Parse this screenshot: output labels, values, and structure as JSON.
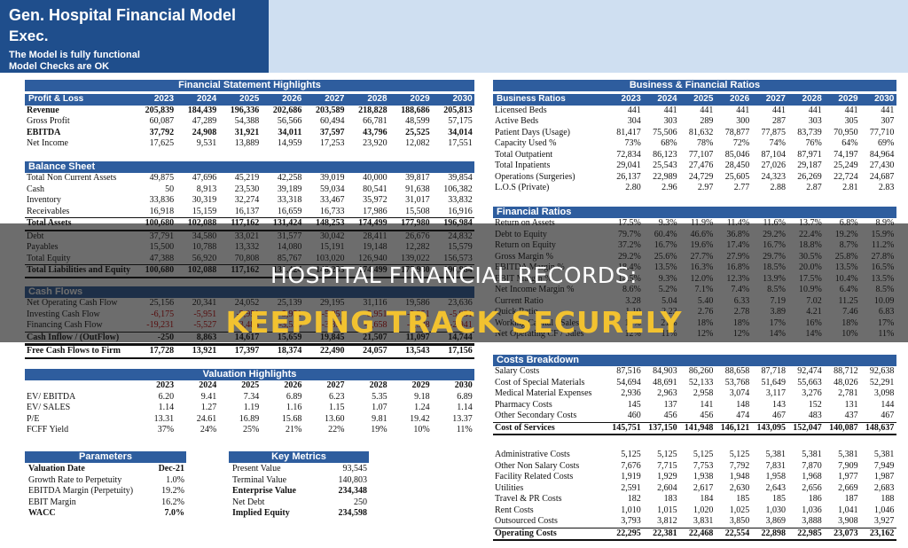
{
  "header": {
    "title": "Gen. Hospital Financial Model",
    "subtitle": "Exec.",
    "status1": "The Model is fully functional",
    "status2": "Model Checks are OK"
  },
  "years": [
    "2023",
    "2024",
    "2025",
    "2026",
    "2027",
    "2028",
    "2029",
    "2030"
  ],
  "fsh": {
    "title": "Financial Statement Highlights"
  },
  "pl": {
    "title": "Profit & Loss",
    "rows": [
      {
        "label": "Revenue",
        "values": [
          "205,839",
          "184,439",
          "196,336",
          "202,686",
          "203,589",
          "218,828",
          "188,686",
          "205,813"
        ],
        "bold": true
      },
      {
        "label": "Gross Profit",
        "values": [
          "60,087",
          "47,289",
          "54,388",
          "56,566",
          "60,494",
          "66,781",
          "48,599",
          "57,175"
        ]
      },
      {
        "label": "EBITDA",
        "values": [
          "37,792",
          "24,908",
          "31,921",
          "34,011",
          "37,597",
          "43,796",
          "25,525",
          "34,014"
        ],
        "bold": true
      },
      {
        "label": "Net Income",
        "values": [
          "17,625",
          "9,531",
          "13,889",
          "14,959",
          "17,253",
          "23,920",
          "12,082",
          "17,551"
        ]
      }
    ]
  },
  "bs": {
    "title": "Balance Sheet",
    "rows": [
      {
        "label": "Total Non Current Assets",
        "values": [
          "49,875",
          "47,696",
          "45,219",
          "42,258",
          "39,019",
          "40,000",
          "39,817",
          "39,854"
        ]
      },
      {
        "label": "Cash",
        "values": [
          "50",
          "8,913",
          "23,530",
          "39,189",
          "59,034",
          "80,541",
          "91,638",
          "106,382"
        ]
      },
      {
        "label": "Inventory",
        "values": [
          "33,836",
          "30,319",
          "32,274",
          "33,318",
          "33,467",
          "35,972",
          "31,017",
          "33,832"
        ]
      },
      {
        "label": "Receivables",
        "values": [
          "16,918",
          "15,159",
          "16,137",
          "16,659",
          "16,733",
          "17,986",
          "15,508",
          "16,916"
        ]
      },
      {
        "label": "Total Assets",
        "values": [
          "100,680",
          "102,088",
          "117,162",
          "131,424",
          "148,253",
          "174,499",
          "177,980",
          "196,984"
        ],
        "total": true
      },
      {
        "label": "Debt",
        "values": [
          "37,791",
          "34,580",
          "33,021",
          "31,577",
          "30,042",
          "28,411",
          "26,676",
          "24,832"
        ]
      },
      {
        "label": "Payables",
        "values": [
          "15,500",
          "10,788",
          "13,332",
          "14,080",
          "15,191",
          "19,148",
          "12,282",
          "15,579"
        ]
      },
      {
        "label": "Total Equity",
        "values": [
          "47,388",
          "56,920",
          "70,808",
          "85,767",
          "103,020",
          "126,940",
          "139,022",
          "156,573"
        ]
      },
      {
        "label": "Total Liabilities and Equity",
        "values": [
          "100,680",
          "102,088",
          "117,162",
          "131,424",
          "148,253",
          "174,499",
          "177,980",
          "196,984"
        ],
        "total": true
      }
    ]
  },
  "cf": {
    "title": "Cash Flows",
    "rows": [
      {
        "label": "Net Operating Cash Flow",
        "values": [
          "25,156",
          "20,341",
          "24,052",
          "25,139",
          "29,195",
          "31,116",
          "19,586",
          "23,636"
        ]
      },
      {
        "label": "Investing Cash Flow",
        "values": [
          "-6,175",
          "-5,951",
          "-5,951",
          "-5,951",
          "-5,951",
          "-5,951",
          "-5,951",
          "-5,951"
        ],
        "neg": true
      },
      {
        "label": "Financing Cash Flow",
        "values": [
          "-19,231",
          "-5,527",
          "-3,484",
          "-3,529",
          "-3,399",
          "-3,658",
          "-2,538",
          "-2,941"
        ],
        "neg": true
      },
      {
        "label": "Cash Inflow / (OutFlow)",
        "values": [
          "-250",
          "8,863",
          "14,617",
          "15,659",
          "19,845",
          "21,507",
          "11,097",
          "14,744"
        ],
        "total": true
      },
      {
        "label": "Free Cash Flows to Firm",
        "values": [
          "17,728",
          "13,921",
          "17,397",
          "18,374",
          "22,490",
          "24,057",
          "13,543",
          "17,156"
        ],
        "total": true
      }
    ]
  },
  "vh": {
    "title": "Valuation Highlights",
    "rows": [
      {
        "label": "EV/ EBITDA",
        "values": [
          "6.20",
          "9.41",
          "7.34",
          "6.89",
          "6.23",
          "5.35",
          "9.18",
          "6.89"
        ]
      },
      {
        "label": "EV/ SALES",
        "values": [
          "1.14",
          "1.27",
          "1.19",
          "1.16",
          "1.15",
          "1.07",
          "1.24",
          "1.14"
        ]
      },
      {
        "label": "P/E",
        "values": [
          "13.31",
          "24.61",
          "16.89",
          "15.68",
          "13.60",
          "9.81",
          "19.42",
          "13.37"
        ]
      },
      {
        "label": "FCFF Yield",
        "values": [
          "37%",
          "24%",
          "25%",
          "21%",
          "22%",
          "19%",
          "10%",
          "11%"
        ]
      }
    ]
  },
  "params": {
    "title": "Parameters",
    "rows": [
      {
        "label": "Valuation Date",
        "value": "Dec-21",
        "bold": true
      },
      {
        "label": "Growth Rate to Perpetuity",
        "value": "1.0%"
      },
      {
        "label": "EBITDA Margin (Perpetuity)",
        "value": "19.2%"
      },
      {
        "label": "EBIT Margin",
        "value": "16.2%"
      },
      {
        "label": "WACC",
        "value": "7.0%",
        "bold": true
      }
    ]
  },
  "km": {
    "title": "Key Metrics",
    "rows": [
      {
        "label": "Present Value",
        "value": "93,545"
      },
      {
        "label": "Terminal Value",
        "value": "140,803"
      },
      {
        "label": "Enterprise Value",
        "value": "234,348",
        "bold": true
      },
      {
        "label": "Net Debt",
        "value": "250"
      },
      {
        "label": "Implied Equity",
        "value": "234,598",
        "bold": true
      }
    ]
  },
  "bfr": {
    "title": "Business & Financial Ratios"
  },
  "br": {
    "title": "Business Ratios",
    "rows": [
      {
        "label": "Licensed Beds",
        "values": [
          "441",
          "441",
          "441",
          "441",
          "441",
          "441",
          "441",
          "441"
        ]
      },
      {
        "label": "Active Beds",
        "values": [
          "304",
          "303",
          "289",
          "300",
          "287",
          "303",
          "305",
          "307"
        ]
      },
      {
        "label": "Patient Days (Usage)",
        "values": [
          "81,417",
          "75,506",
          "81,632",
          "78,877",
          "77,875",
          "83,739",
          "70,950",
          "77,710"
        ]
      },
      {
        "label": "Capacity Used %",
        "values": [
          "73%",
          "68%",
          "78%",
          "72%",
          "74%",
          "76%",
          "64%",
          "69%"
        ]
      },
      {
        "label": "Total Outpatient",
        "values": [
          "72,834",
          "86,123",
          "77,107",
          "85,046",
          "87,104",
          "87,971",
          "74,197",
          "84,964"
        ]
      },
      {
        "label": "Total Inpatients",
        "values": [
          "29,041",
          "25,543",
          "27,476",
          "28,450",
          "27,026",
          "29,187",
          "25,249",
          "27,430"
        ]
      },
      {
        "label": "Operations (Surgeries)",
        "values": [
          "26,137",
          "22,989",
          "24,729",
          "25,605",
          "24,323",
          "26,269",
          "22,724",
          "24,687"
        ]
      },
      {
        "label": "L.O.S (Private)",
        "values": [
          "2.80",
          "2.96",
          "2.97",
          "2.77",
          "2.88",
          "2.87",
          "2.81",
          "2.83"
        ]
      }
    ]
  },
  "fr": {
    "title": "Financial Ratios",
    "rows": [
      {
        "label": "Return on Assets",
        "values": [
          "17.5%",
          "9.3%",
          "11.9%",
          "11.4%",
          "11.6%",
          "13.7%",
          "6.8%",
          "8.9%"
        ]
      },
      {
        "label": "Debt to Equity",
        "values": [
          "79.7%",
          "60.4%",
          "46.6%",
          "36.8%",
          "29.2%",
          "22.4%",
          "19.2%",
          "15.9%"
        ]
      },
      {
        "label": "Return on Equity",
        "values": [
          "37.2%",
          "16.7%",
          "19.6%",
          "17.4%",
          "16.7%",
          "18.8%",
          "8.7%",
          "11.2%"
        ]
      },
      {
        "label": "Gross Margin %",
        "values": [
          "29.2%",
          "25.6%",
          "27.7%",
          "27.9%",
          "29.7%",
          "30.5%",
          "25.8%",
          "27.8%"
        ]
      },
      {
        "label": "EBITDA Margin %",
        "values": [
          "18.4%",
          "13.5%",
          "16.3%",
          "16.8%",
          "18.5%",
          "20.0%",
          "13.5%",
          "16.5%"
        ]
      },
      {
        "label": "EBIT Margin %",
        "values": [
          "14.5%",
          "9.3%",
          "12.0%",
          "12.3%",
          "13.9%",
          "17.5%",
          "10.4%",
          "13.5%"
        ]
      },
      {
        "label": "Net Income Margin %",
        "values": [
          "8.6%",
          "5.2%",
          "7.1%",
          "7.4%",
          "8.5%",
          "10.9%",
          "6.4%",
          "8.5%"
        ]
      },
      {
        "label": "Current Ratio",
        "values": [
          "3.28",
          "5.04",
          "5.40",
          "6.33",
          "7.19",
          "7.02",
          "11.25",
          "10.09"
        ]
      },
      {
        "label": "Quick Ratio",
        "values": [
          "1.10",
          "2.23",
          "2.76",
          "2.78",
          "3.89",
          "4.21",
          "7.46",
          "6.83"
        ]
      },
      {
        "label": "Working Capital / Sales",
        "values": [
          "17%",
          "21%",
          "18%",
          "18%",
          "17%",
          "16%",
          "18%",
          "17%"
        ]
      },
      {
        "label": "Net Operating CF / Sales",
        "values": [
          "12%",
          "11%",
          "12%",
          "12%",
          "14%",
          "14%",
          "10%",
          "11%"
        ]
      }
    ]
  },
  "cb": {
    "title": "Costs Breakdown",
    "rows": [
      {
        "label": "Salary Costs",
        "values": [
          "87,516",
          "84,903",
          "86,260",
          "88,658",
          "87,718",
          "92,474",
          "88,712",
          "92,638"
        ]
      },
      {
        "label": "Cost of Special Materials",
        "values": [
          "54,694",
          "48,691",
          "52,133",
          "53,768",
          "51,649",
          "55,663",
          "48,026",
          "52,291"
        ]
      },
      {
        "label": "Medical Material Expenses",
        "values": [
          "2,936",
          "2,963",
          "2,958",
          "3,074",
          "3,117",
          "3,276",
          "2,781",
          "3,098"
        ]
      },
      {
        "label": "Pharmacy Costs",
        "values": [
          "145",
          "137",
          "141",
          "148",
          "143",
          "152",
          "131",
          "144"
        ]
      },
      {
        "label": "Other Secondary Costs",
        "values": [
          "460",
          "456",
          "456",
          "474",
          "467",
          "483",
          "437",
          "467"
        ]
      },
      {
        "label": "Cost of Services",
        "values": [
          "145,751",
          "137,150",
          "141,948",
          "146,121",
          "143,095",
          "152,047",
          "140,087",
          "148,637"
        ],
        "total": true
      }
    ]
  },
  "oc": {
    "rows": [
      {
        "label": "Administrative Costs",
        "values": [
          "5,125",
          "5,125",
          "5,125",
          "5,125",
          "5,381",
          "5,381",
          "5,381",
          "5,381"
        ]
      },
      {
        "label": "Other Non Salary Costs",
        "values": [
          "7,676",
          "7,715",
          "7,753",
          "7,792",
          "7,831",
          "7,870",
          "7,909",
          "7,949"
        ]
      },
      {
        "label": "Facility Related Costs",
        "values": [
          "1,919",
          "1,929",
          "1,938",
          "1,948",
          "1,958",
          "1,968",
          "1,977",
          "1,987"
        ]
      },
      {
        "label": "Utilities",
        "values": [
          "2,591",
          "2,604",
          "2,617",
          "2,630",
          "2,643",
          "2,656",
          "2,669",
          "2,683"
        ]
      },
      {
        "label": "Travel & PR Costs",
        "values": [
          "182",
          "183",
          "184",
          "185",
          "185",
          "186",
          "187",
          "188"
        ]
      },
      {
        "label": "Rent Costs",
        "values": [
          "1,010",
          "1,015",
          "1,020",
          "1,025",
          "1,030",
          "1,036",
          "1,041",
          "1,046"
        ]
      },
      {
        "label": "Outsourced Costs",
        "values": [
          "3,793",
          "3,812",
          "3,831",
          "3,850",
          "3,869",
          "3,888",
          "3,908",
          "3,927"
        ]
      },
      {
        "label": "Operating Costs",
        "values": [
          "22,295",
          "22,381",
          "22,468",
          "22,554",
          "22,898",
          "22,985",
          "23,073",
          "23,162"
        ],
        "total": true
      }
    ]
  },
  "banner": {
    "line1": "HOSPITAL FINANCIAL RECORDS:",
    "line2": "KEEPING TRACK SECURELY"
  }
}
